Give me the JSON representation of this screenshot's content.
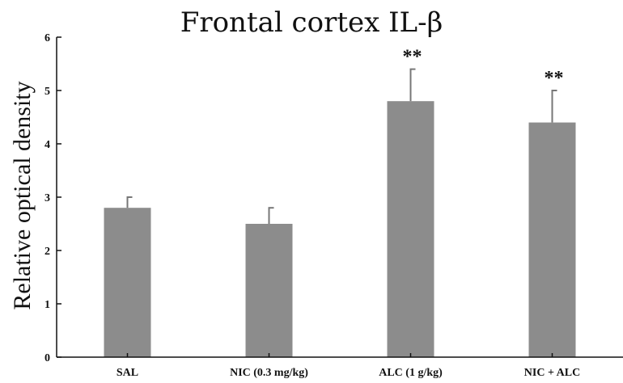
{
  "chart_data": {
    "type": "bar",
    "title": "Frontal cortex IL-β",
    "xlabel": "",
    "ylabel": "Relative optical density",
    "ylim": [
      0,
      6
    ],
    "yticks": [
      0,
      1,
      2,
      3,
      4,
      5,
      6
    ],
    "categories": [
      "SAL",
      "NIC (0.3 mg/kg)",
      "ALC (1 g/kg)",
      "NIC + ALC"
    ],
    "values": [
      2.8,
      2.5,
      4.8,
      4.4
    ],
    "errors": [
      0.2,
      0.3,
      0.6,
      0.6
    ],
    "annotations": [
      "",
      "",
      "**",
      "**"
    ],
    "bar_color": "#8c8c8c",
    "grid": false,
    "legend": "none"
  }
}
